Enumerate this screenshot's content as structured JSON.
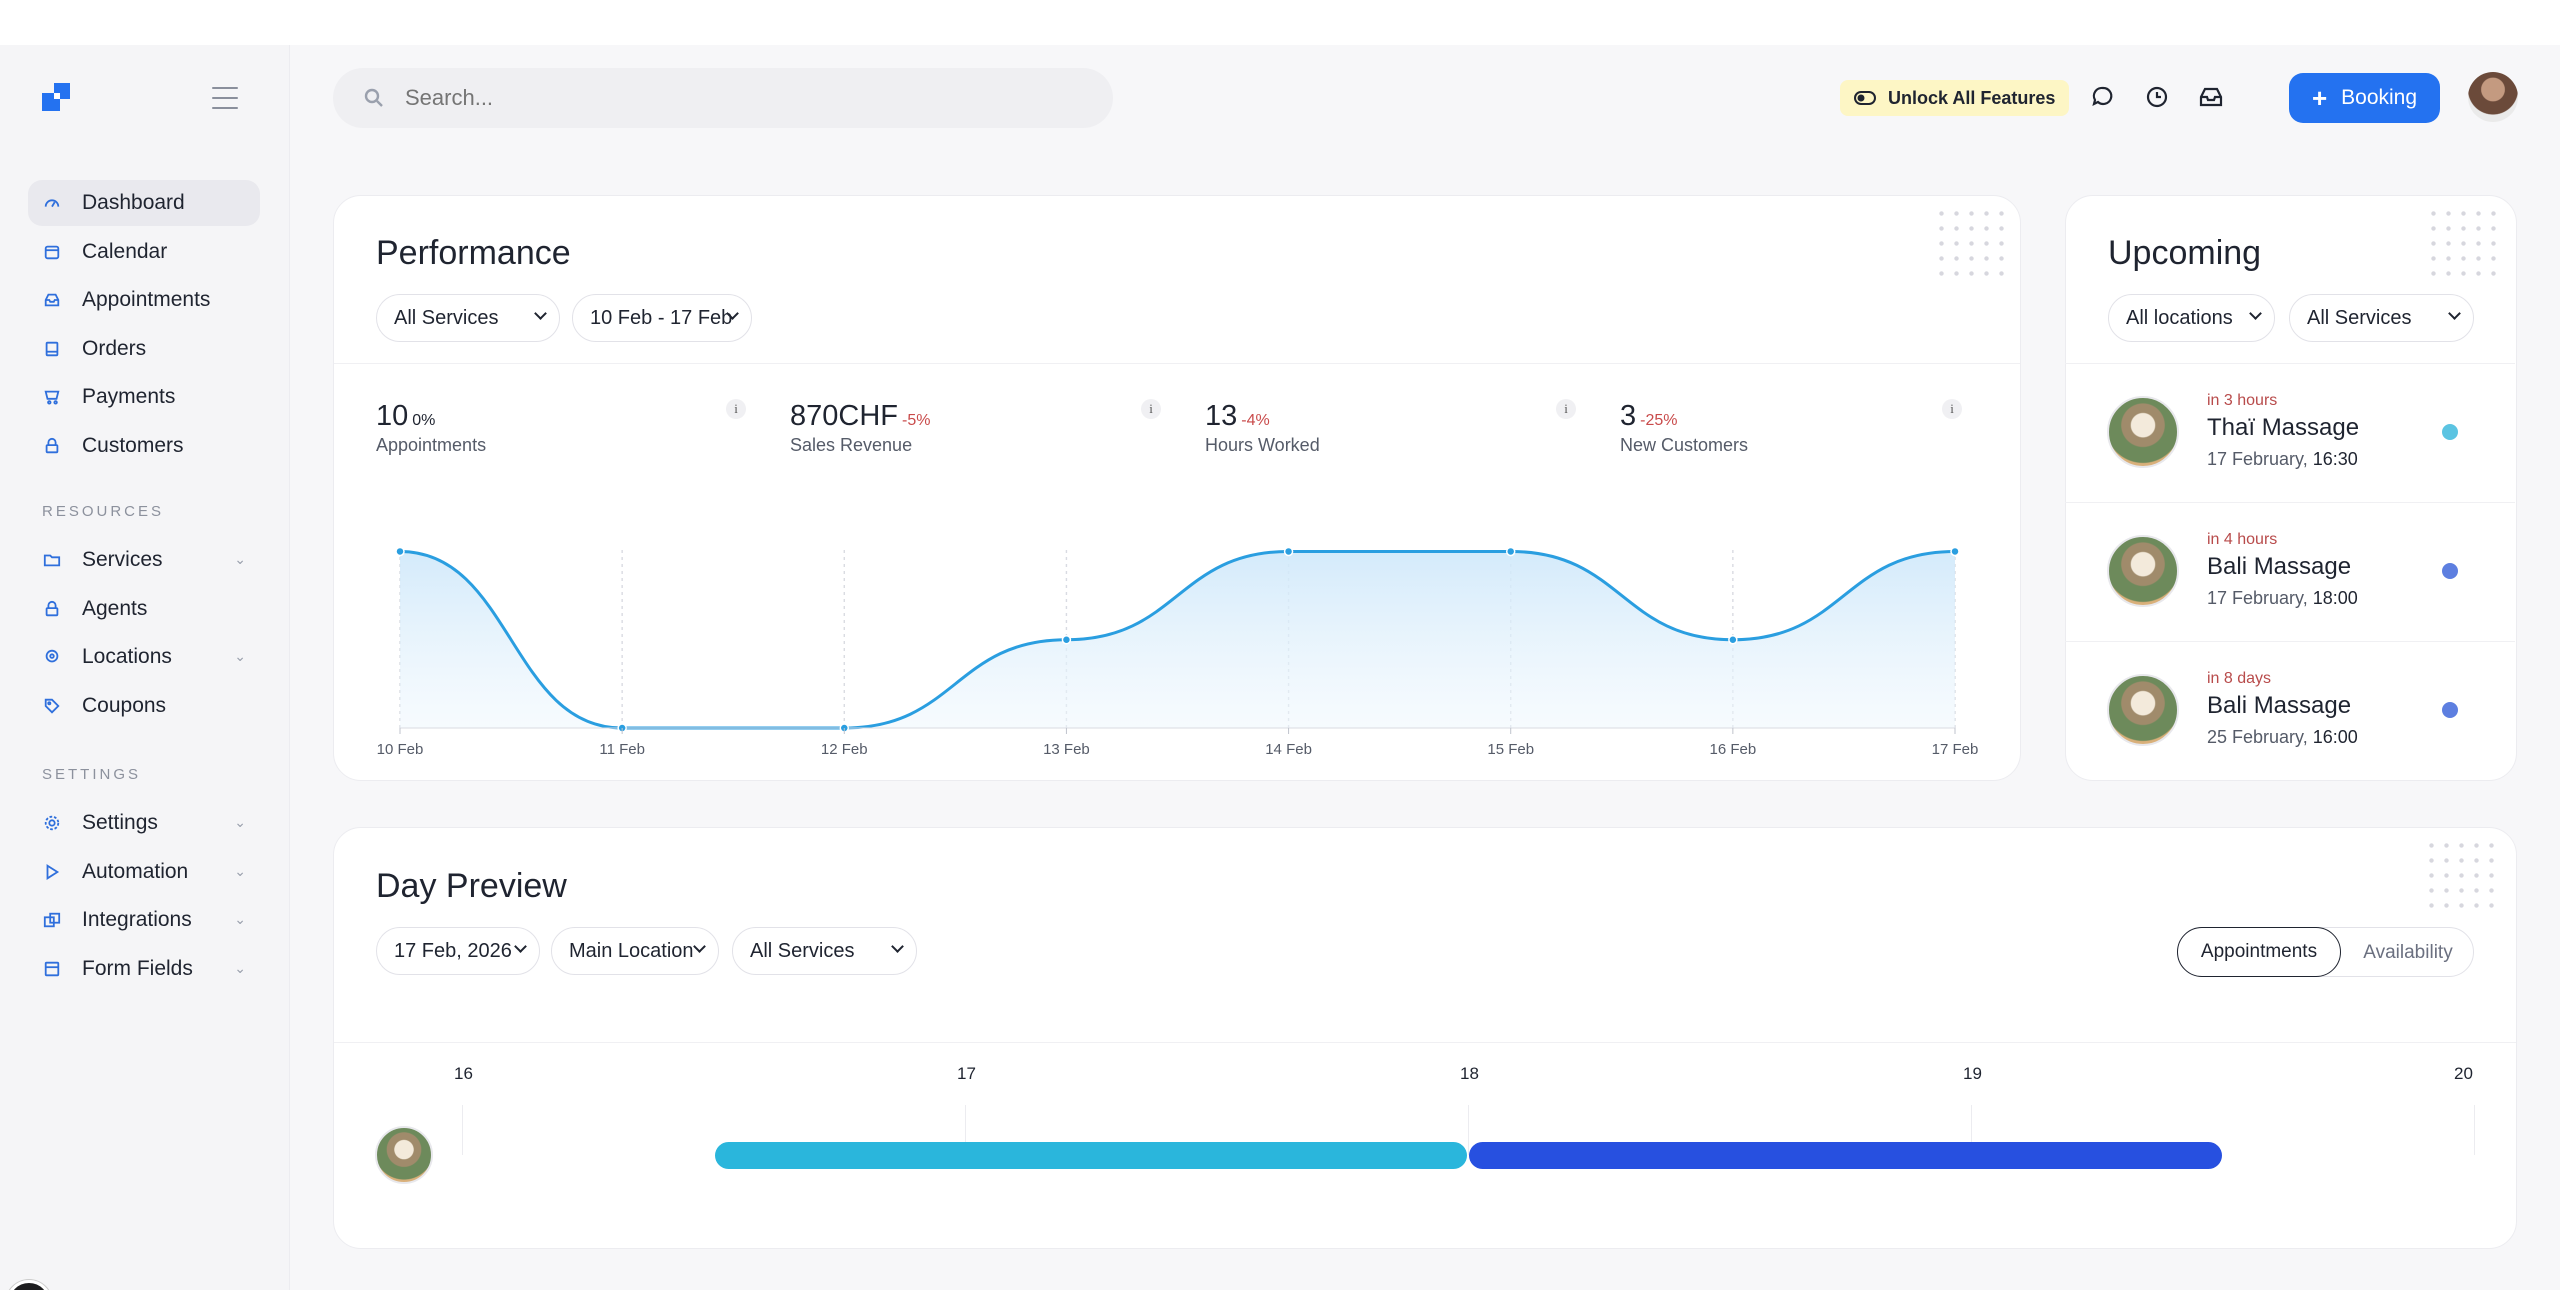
{
  "sidebar": {
    "main_items": [
      {
        "label": "Dashboard",
        "icon": "dashboard-icon"
      },
      {
        "label": "Calendar",
        "icon": "calendar-icon"
      },
      {
        "label": "Appointments",
        "icon": "inbox-icon"
      },
      {
        "label": "Orders",
        "icon": "orders-icon"
      },
      {
        "label": "Payments",
        "icon": "cart-icon"
      },
      {
        "label": "Customers",
        "icon": "user-icon"
      }
    ],
    "resources_label": "RESOURCES",
    "resource_items": [
      {
        "label": "Services",
        "icon": "folder-icon"
      },
      {
        "label": "Agents",
        "icon": "agent-icon"
      },
      {
        "label": "Locations",
        "icon": "location-icon"
      },
      {
        "label": "Coupons",
        "icon": "tag-icon"
      }
    ],
    "settings_label": "SETTINGS",
    "settings_items": [
      {
        "label": "Settings",
        "icon": "gear-icon"
      },
      {
        "label": "Automation",
        "icon": "play-icon"
      },
      {
        "label": "Integrations",
        "icon": "integrations-icon"
      },
      {
        "label": "Form Fields",
        "icon": "form-icon"
      }
    ]
  },
  "header": {
    "search_placeholder": "Search...",
    "unlock_label": "Unlock All Features",
    "booking_label": "Booking"
  },
  "performance": {
    "title": "Performance",
    "service_filter": "All Services",
    "date_filter": "10 Feb - 17 Feb",
    "metrics": [
      {
        "value": "10",
        "change": "0%",
        "label": "Appointments"
      },
      {
        "value": "870CHF",
        "change": "-5%",
        "label": "Sales Revenue"
      },
      {
        "value": "13",
        "change": "-4%",
        "label": "Hours Worked"
      },
      {
        "value": "3",
        "change": "-25%",
        "label": "New Customers"
      }
    ],
    "info_label": "i"
  },
  "chart_data": {
    "type": "area",
    "x": [
      "10 Feb",
      "11 Feb",
      "12 Feb",
      "13 Feb",
      "14 Feb",
      "15 Feb",
      "16 Feb",
      "17 Feb"
    ],
    "series": [
      {
        "values": [
          2,
          0,
          0,
          1,
          2,
          2,
          1,
          2
        ]
      }
    ],
    "ylim": [
      0,
      2.3
    ],
    "grid": "vertical dashed",
    "color": "#2a9ee0"
  },
  "upcoming": {
    "title": "Upcoming",
    "location_filter": "All locations",
    "service_filter": "All Services",
    "items": [
      {
        "when": "in 3 hours",
        "name": "Thaï Massage",
        "date": "17 February,",
        "time": "16:30",
        "color": "#5bc4e2"
      },
      {
        "when": "in 4 hours",
        "name": "Bali Massage",
        "date": "17 February,",
        "time": "18:00",
        "color": "#5d7fe0"
      },
      {
        "when": "in 8 days",
        "name": "Bali Massage",
        "date": "25 February,",
        "time": "16:00",
        "color": "#5d7fe0"
      }
    ]
  },
  "day_preview": {
    "title": "Day Preview",
    "date_filter": "17 Feb, 2026",
    "location_filter": "Main Location",
    "service_filter": "All Services",
    "toggle_appointments": "Appointments",
    "toggle_availability": "Availability",
    "hours": [
      "16",
      "17",
      "18",
      "19",
      "20"
    ],
    "bars": [
      {
        "start_hour": 16.5,
        "end_hour": 18.0,
        "color": "#2ab6dc"
      },
      {
        "start_hour": 18.0,
        "end_hour": 19.5,
        "color": "#2750e0"
      }
    ]
  }
}
